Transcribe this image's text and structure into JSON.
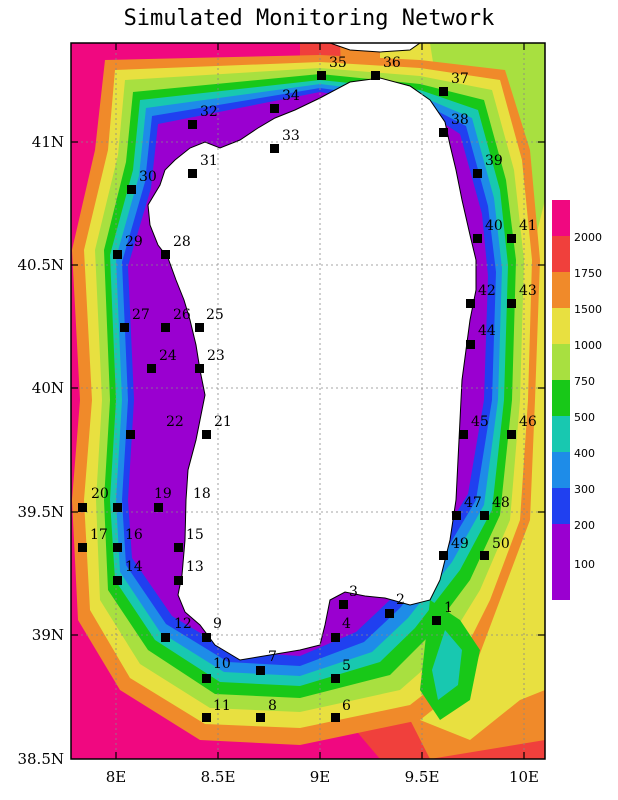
{
  "title": "Simulated Monitoring Network",
  "x_ticks": [
    "8E",
    "8.5E",
    "9E",
    "9.5E",
    "10E"
  ],
  "y_ticks": [
    "41N",
    "40.5N",
    "40N",
    "39.5N",
    "39N",
    "38.5N"
  ],
  "colorbar": {
    "labels": [
      "2000",
      "1750",
      "1500",
      "1000",
      "750",
      "500",
      "400",
      "300",
      "200",
      "100"
    ],
    "colors": [
      "#f00880",
      "#f0403c",
      "#f08a2a",
      "#e8e040",
      "#a8e040",
      "#18c818",
      "#18c8b0",
      "#1e8ce8",
      "#2040f0",
      "#9a00d0"
    ]
  },
  "land_color": "#ffffff",
  "stations": [
    "1",
    "2",
    "3",
    "4",
    "5",
    "6",
    "7",
    "8",
    "9",
    "10",
    "11",
    "12",
    "13",
    "14",
    "15",
    "16",
    "17",
    "18",
    "19",
    "20",
    "21",
    "22",
    "23",
    "24",
    "25",
    "26",
    "27",
    "28",
    "29",
    "30",
    "31",
    "32",
    "33",
    "34",
    "35",
    "36",
    "37",
    "38",
    "39",
    "40",
    "41",
    "42",
    "43",
    "44",
    "45",
    "46",
    "47",
    "48",
    "49",
    "50"
  ]
}
